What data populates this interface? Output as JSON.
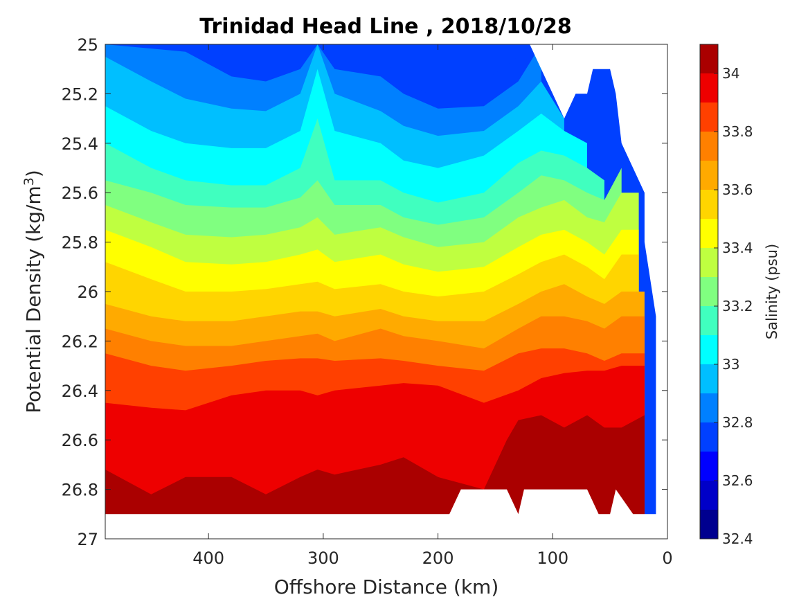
{
  "chart_data": {
    "type": "filled-contour",
    "title": "Trinidad Head Line , 2018/10/28",
    "xlabel": "Offshore Distance (km)",
    "ylabel_main": "Potential Density (kg/m",
    "ylabel_sup": "3",
    "ylabel_close": ")",
    "x_reversed": true,
    "xlim": [
      0,
      490
    ],
    "ylim": [
      25,
      27
    ],
    "y_reversed": true,
    "xticks": [
      400,
      300,
      200,
      100,
      0
    ],
    "xtick_labels": [
      "400",
      "300",
      "200",
      "100",
      "0"
    ],
    "yticks": [
      25,
      25.2,
      25.4,
      25.6,
      25.8,
      26,
      26.2,
      26.4,
      26.6,
      26.8,
      27
    ],
    "ytick_labels": [
      "25",
      "25.2",
      "25.4",
      "25.6",
      "25.8",
      "26",
      "26.2",
      "26.4",
      "26.6",
      "26.8",
      "27"
    ],
    "colorbar": {
      "label": "Salinity (psu)",
      "range": [
        32.4,
        34.1
      ],
      "levels": [
        32.4,
        32.5,
        32.6,
        32.7,
        32.8,
        32.9,
        33.0,
        33.1,
        33.2,
        33.3,
        33.4,
        33.5,
        33.6,
        33.7,
        33.8,
        33.9,
        34.0,
        34.1
      ],
      "tick_values": [
        32.4,
        32.6,
        32.8,
        33.0,
        33.2,
        33.4,
        33.6,
        33.8,
        34.0
      ],
      "tick_labels": [
        "32.4",
        "32.6",
        "32.8",
        "33",
        "33.2",
        "33.4",
        "33.6",
        "33.8",
        "34"
      ],
      "colors": [
        "#00008f",
        "#0000c8",
        "#0000ff",
        "#0040ff",
        "#0080ff",
        "#00bfff",
        "#00ffff",
        "#40ffbf",
        "#80ff80",
        "#bfff40",
        "#ffff00",
        "#ffd500",
        "#ffaa00",
        "#ff8000",
        "#ff4000",
        "#ee0000",
        "#aa0000"
      ]
    },
    "data_extent": {
      "bottom_boundary": {
        "x": [
          490,
          190,
          180,
          150,
          140,
          130,
          125,
          115,
          70,
          60,
          50,
          45,
          30
        ],
        "y": [
          26.9,
          26.9,
          26.8,
          26.8,
          26.8,
          26.9,
          26.8,
          26.8,
          26.8,
          26.9,
          26.9,
          26.8,
          26.9
        ]
      },
      "top_right_boundary": {
        "x": [
          120,
          95,
          90,
          80,
          70,
          65,
          60,
          55,
          50,
          45,
          40,
          30,
          20,
          20,
          10
        ],
        "y": [
          25.0,
          25.25,
          25.3,
          25.2,
          25.2,
          25.1,
          25.1,
          25.1,
          25.1,
          25.2,
          25.4,
          25.5,
          25.6,
          25.8,
          26.1
        ]
      }
    },
    "contour_bands": [
      {
        "level": 32.7,
        "x": [
          490,
          420,
          380,
          350,
          320,
          305,
          290,
          250,
          230,
          200,
          160,
          130,
          110
        ],
        "y": [
          25.0,
          25.0,
          25.05,
          25.05,
          25.03,
          25.0,
          25.0,
          25.05,
          25.15,
          25.22,
          25.15,
          25.05,
          25.0
        ]
      },
      {
        "level": 32.8,
        "x": [
          490,
          420,
          380,
          350,
          320,
          305,
          290,
          250,
          230,
          200,
          160,
          130,
          110
        ],
        "y": [
          25.0,
          25.03,
          25.13,
          25.15,
          25.1,
          25.0,
          25.1,
          25.13,
          25.2,
          25.26,
          25.25,
          25.15,
          25.0
        ]
      },
      {
        "level": 32.9,
        "x": [
          490,
          450,
          420,
          380,
          350,
          320,
          305,
          290,
          250,
          230,
          200,
          160,
          130,
          110,
          90
        ],
        "y": [
          25.05,
          25.15,
          25.22,
          25.26,
          25.27,
          25.2,
          25.0,
          25.2,
          25.27,
          25.33,
          25.37,
          25.35,
          25.25,
          25.15,
          25.3
        ]
      },
      {
        "level": 33.0,
        "x": [
          490,
          450,
          420,
          380,
          350,
          320,
          305,
          290,
          250,
          230,
          200,
          160,
          130,
          110,
          90,
          70
        ],
        "y": [
          25.25,
          25.35,
          25.4,
          25.42,
          25.42,
          25.35,
          25.1,
          25.35,
          25.4,
          25.47,
          25.5,
          25.45,
          25.35,
          25.28,
          25.35,
          25.4
        ]
      },
      {
        "level": 33.1,
        "x": [
          490,
          450,
          420,
          380,
          350,
          320,
          305,
          290,
          250,
          230,
          200,
          160,
          130,
          110,
          90,
          70,
          55
        ],
        "y": [
          25.4,
          25.5,
          25.55,
          25.57,
          25.57,
          25.5,
          25.3,
          25.55,
          25.55,
          25.6,
          25.64,
          25.6,
          25.48,
          25.43,
          25.45,
          25.5,
          25.55
        ]
      },
      {
        "level": 33.2,
        "x": [
          490,
          450,
          420,
          380,
          350,
          320,
          305,
          290,
          250,
          230,
          200,
          160,
          130,
          110,
          90,
          70,
          55,
          40
        ],
        "y": [
          25.55,
          25.6,
          25.65,
          25.66,
          25.66,
          25.62,
          25.55,
          25.65,
          25.65,
          25.7,
          25.73,
          25.7,
          25.6,
          25.53,
          25.55,
          25.6,
          25.63,
          25.5
        ]
      },
      {
        "level": 33.3,
        "x": [
          490,
          450,
          420,
          380,
          350,
          320,
          305,
          290,
          250,
          230,
          200,
          160,
          130,
          110,
          90,
          70,
          55,
          40,
          25
        ],
        "y": [
          25.65,
          25.72,
          25.77,
          25.78,
          25.77,
          25.74,
          25.7,
          25.77,
          25.74,
          25.78,
          25.82,
          25.8,
          25.7,
          25.66,
          25.63,
          25.7,
          25.72,
          25.6,
          25.6
        ]
      },
      {
        "level": 33.4,
        "x": [
          490,
          450,
          420,
          380,
          350,
          320,
          305,
          290,
          250,
          230,
          200,
          160,
          130,
          110,
          90,
          70,
          55,
          40,
          25
        ],
        "y": [
          25.75,
          25.82,
          25.88,
          25.89,
          25.88,
          25.85,
          25.83,
          25.88,
          25.85,
          25.89,
          25.92,
          25.9,
          25.82,
          25.77,
          25.75,
          25.8,
          25.85,
          25.75,
          25.75
        ]
      },
      {
        "level": 33.5,
        "x": [
          490,
          450,
          420,
          380,
          350,
          320,
          305,
          290,
          250,
          230,
          200,
          160,
          130,
          110,
          90,
          70,
          55,
          40,
          25
        ],
        "y": [
          25.88,
          25.95,
          26.0,
          26.0,
          25.99,
          25.97,
          25.96,
          25.99,
          25.97,
          26.0,
          26.02,
          26.0,
          25.93,
          25.88,
          25.85,
          25.9,
          25.95,
          25.85,
          25.85
        ]
      },
      {
        "level": 33.6,
        "x": [
          490,
          450,
          420,
          380,
          350,
          320,
          305,
          290,
          250,
          230,
          200,
          160,
          130,
          110,
          90,
          70,
          55,
          40,
          20
        ],
        "y": [
          26.05,
          26.1,
          26.12,
          26.12,
          26.1,
          26.08,
          26.08,
          26.1,
          26.07,
          26.1,
          26.12,
          26.12,
          26.05,
          26.0,
          25.97,
          26.02,
          26.05,
          26.0,
          26.0
        ]
      },
      {
        "level": 33.7,
        "x": [
          490,
          450,
          420,
          380,
          350,
          320,
          305,
          290,
          250,
          230,
          200,
          160,
          130,
          110,
          90,
          70,
          55,
          40,
          20
        ],
        "y": [
          26.15,
          26.2,
          26.22,
          26.22,
          26.2,
          26.18,
          26.17,
          26.2,
          26.15,
          26.18,
          26.2,
          26.23,
          26.15,
          26.1,
          26.1,
          26.12,
          26.15,
          26.1,
          26.1
        ]
      },
      {
        "level": 33.8,
        "x": [
          490,
          450,
          420,
          380,
          350,
          320,
          305,
          290,
          250,
          230,
          200,
          160,
          130,
          110,
          90,
          70,
          55,
          40,
          20
        ],
        "y": [
          26.25,
          26.3,
          26.32,
          26.3,
          26.28,
          26.27,
          26.27,
          26.28,
          26.27,
          26.28,
          26.3,
          26.32,
          26.25,
          26.23,
          26.23,
          26.25,
          26.28,
          26.25,
          26.25
        ]
      },
      {
        "level": 33.9,
        "x": [
          490,
          450,
          420,
          380,
          350,
          320,
          305,
          290,
          250,
          230,
          200,
          160,
          130,
          110,
          90,
          70,
          55,
          40,
          20
        ],
        "y": [
          26.45,
          26.47,
          26.48,
          26.42,
          26.4,
          26.4,
          26.42,
          26.4,
          26.38,
          26.37,
          26.38,
          26.45,
          26.4,
          26.35,
          26.33,
          26.32,
          26.32,
          26.3,
          26.3
        ]
      },
      {
        "level": 34.0,
        "x": [
          490,
          450,
          420,
          380,
          350,
          320,
          305,
          290,
          250,
          230,
          200,
          160,
          140,
          130,
          110,
          90,
          70,
          55,
          40,
          20
        ],
        "y": [
          26.72,
          26.82,
          26.75,
          26.75,
          26.82,
          26.75,
          26.72,
          26.74,
          26.7,
          26.67,
          26.75,
          26.8,
          26.6,
          26.52,
          26.5,
          26.55,
          26.5,
          26.55,
          26.55,
          26.5
        ]
      }
    ]
  }
}
